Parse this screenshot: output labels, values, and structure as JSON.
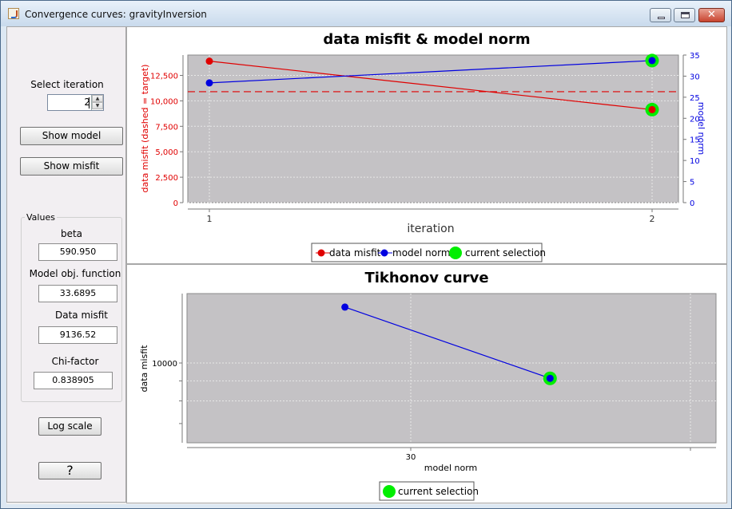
{
  "window": {
    "title": "Convergence curves: gravityInversion",
    "close_symbol": "✕"
  },
  "sidebar": {
    "select_iteration_label": "Select iteration",
    "iteration_value": "2",
    "show_model_label": "Show model",
    "show_misfit_label": "Show misfit",
    "values_group_label": "Values",
    "beta_label": "beta",
    "beta_value": "590.950",
    "model_obj_label": "Model obj. function",
    "model_obj_value": "33.6895",
    "data_misfit_label": "Data misfit",
    "data_misfit_value": "9136.52",
    "chi_factor_label": "Chi-factor",
    "chi_factor_value": "0.838905",
    "log_scale_label": "Log scale",
    "help_label": "?"
  },
  "colors": {
    "misfit": "#e00000",
    "model_norm": "#0000e0",
    "selection": "#00ee00",
    "plot_bg": "#c4c2c5"
  },
  "chart_data": [
    {
      "type": "line",
      "title": "data misfit & model norm",
      "xlabel": "iteration",
      "x": [
        1,
        2
      ],
      "x_ticks": [
        "1",
        "2"
      ],
      "ylabel_left": "data misfit (dashed = target)",
      "ylabel_right": "model norm",
      "ylim_left": [
        0,
        14500
      ],
      "ylim_right": [
        0,
        35
      ],
      "y_ticks_left": [
        "0",
        "2,500",
        "5,000",
        "7,500",
        "10,000",
        "12,500"
      ],
      "y_ticks_right": [
        "0",
        "5",
        "10",
        "15",
        "20",
        "25",
        "30",
        "35"
      ],
      "series": [
        {
          "name": "data misfit",
          "axis": "left",
          "values": [
            13900,
            9136.52
          ]
        },
        {
          "name": "model norm",
          "axis": "right",
          "values": [
            28.4,
            33.69
          ]
        }
      ],
      "target_misfit": 10900,
      "selected_iteration": 2,
      "selection_label": "current selection",
      "grid": true,
      "legend_position": "bottom"
    },
    {
      "type": "scatter",
      "title": "Tikhonov curve",
      "xlabel": "model norm",
      "ylabel": "data misfit",
      "x_ticks": [
        "30"
      ],
      "y_ticks": [
        "10000"
      ],
      "points": [
        {
          "x": 28.4,
          "y": 13900
        },
        {
          "x": 33.69,
          "y": 9136.52
        }
      ],
      "selected_point": 1,
      "selection_label": "current selection",
      "grid": true,
      "legend_position": "bottom"
    }
  ]
}
